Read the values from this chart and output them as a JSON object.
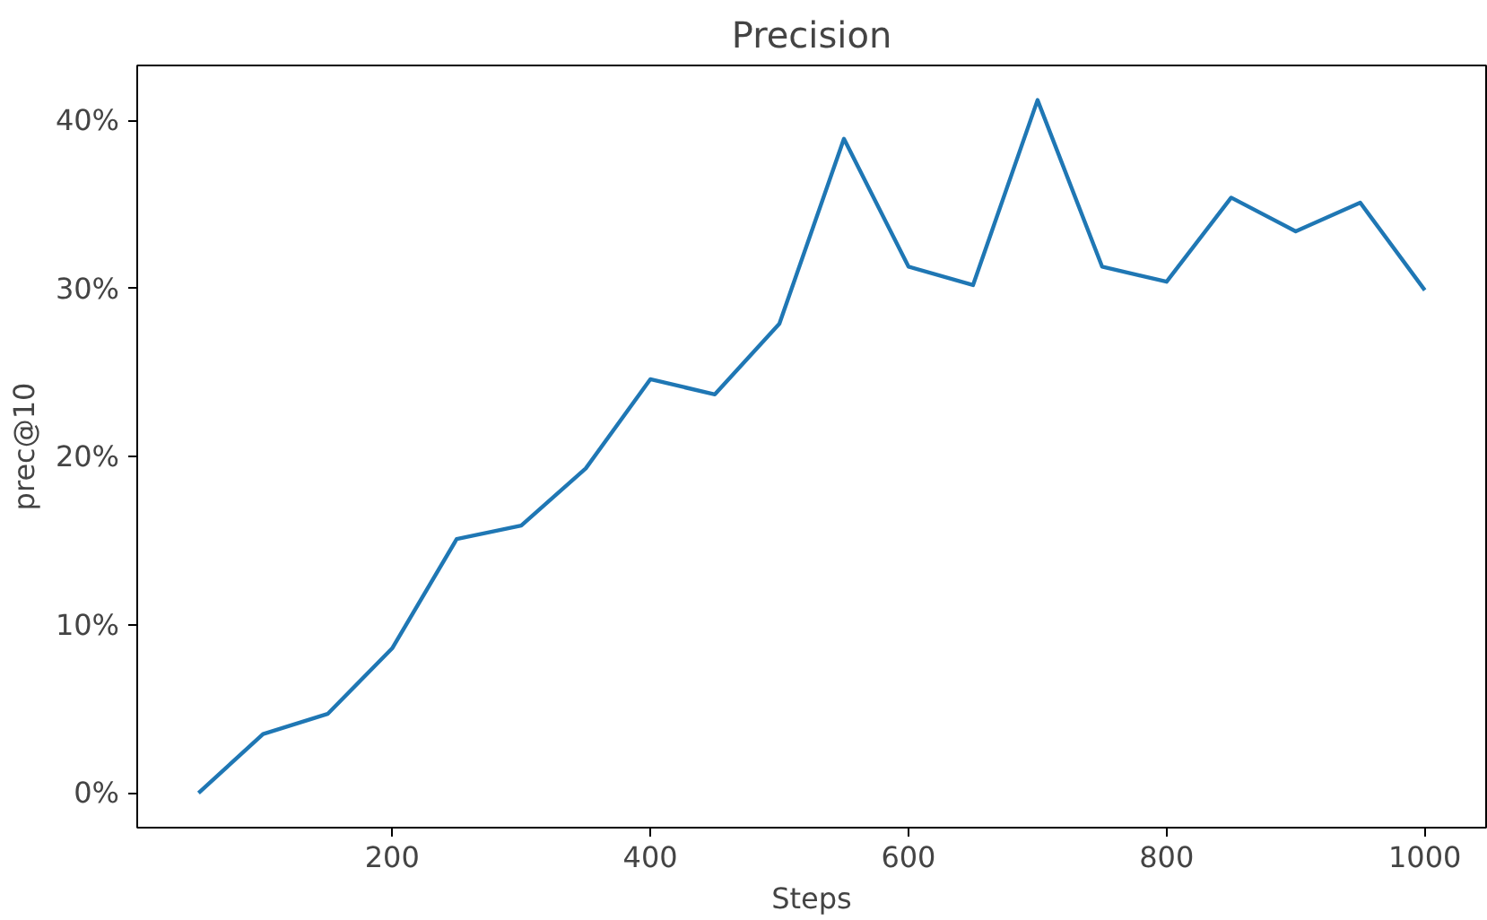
{
  "chart_data": {
    "type": "line",
    "title": "Precision",
    "xlabel": "Steps",
    "ylabel": "prec@10",
    "x": [
      50,
      100,
      150,
      200,
      250,
      300,
      350,
      400,
      450,
      500,
      550,
      600,
      650,
      700,
      750,
      800,
      850,
      900,
      950,
      1000
    ],
    "series": [
      {
        "color": "#1f77b4",
        "values": [
          0,
          3.5,
          4.7,
          8.6,
          15.1,
          15.9,
          19.3,
          24.6,
          23.7,
          27.9,
          38.9,
          31.3,
          30.2,
          41.2,
          31.3,
          30.4,
          35.4,
          33.4,
          35.1,
          29.9
        ]
      }
    ],
    "xlim": [
      2.5,
      1047.5
    ],
    "ylim": [
      -2.06,
      43.26
    ],
    "xticks": [
      200,
      400,
      600,
      800,
      1000
    ],
    "yticks": [
      {
        "value": 0,
        "label": "0%"
      },
      {
        "value": 10,
        "label": "10%"
      },
      {
        "value": 20,
        "label": "20%"
      },
      {
        "value": 30,
        "label": "30%"
      },
      {
        "value": 40,
        "label": "40%"
      }
    ],
    "grid": false,
    "marker": "none",
    "line_style": "solid"
  }
}
